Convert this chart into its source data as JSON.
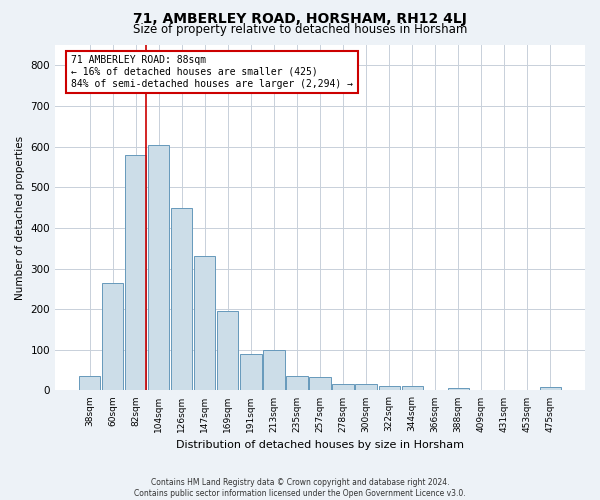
{
  "title": "71, AMBERLEY ROAD, HORSHAM, RH12 4LJ",
  "subtitle": "Size of property relative to detached houses in Horsham",
  "xlabel": "Distribution of detached houses by size in Horsham",
  "ylabel": "Number of detached properties",
  "footer_line1": "Contains HM Land Registry data © Crown copyright and database right 2024.",
  "footer_line2": "Contains public sector information licensed under the Open Government Licence v3.0.",
  "categories": [
    "38sqm",
    "60sqm",
    "82sqm",
    "104sqm",
    "126sqm",
    "147sqm",
    "169sqm",
    "191sqm",
    "213sqm",
    "235sqm",
    "257sqm",
    "278sqm",
    "300sqm",
    "322sqm",
    "344sqm",
    "366sqm",
    "388sqm",
    "409sqm",
    "431sqm",
    "453sqm",
    "475sqm"
  ],
  "values": [
    35,
    265,
    580,
    605,
    450,
    330,
    195,
    90,
    100,
    35,
    32,
    15,
    15,
    10,
    10,
    0,
    5,
    0,
    0,
    0,
    8
  ],
  "bar_color": "#ccdde8",
  "bar_edge_color": "#6699bb",
  "annotation_line_color": "#cc0000",
  "annotation_box_text": "71 AMBERLEY ROAD: 88sqm\n← 16% of detached houses are smaller (425)\n84% of semi-detached houses are larger (2,294) →",
  "ylim": [
    0,
    850
  ],
  "yticks": [
    0,
    100,
    200,
    300,
    400,
    500,
    600,
    700,
    800
  ],
  "bg_color": "#edf2f7",
  "plot_bg_color": "#ffffff",
  "grid_color": "#c8d0da",
  "title_fontsize": 10,
  "subtitle_fontsize": 9
}
